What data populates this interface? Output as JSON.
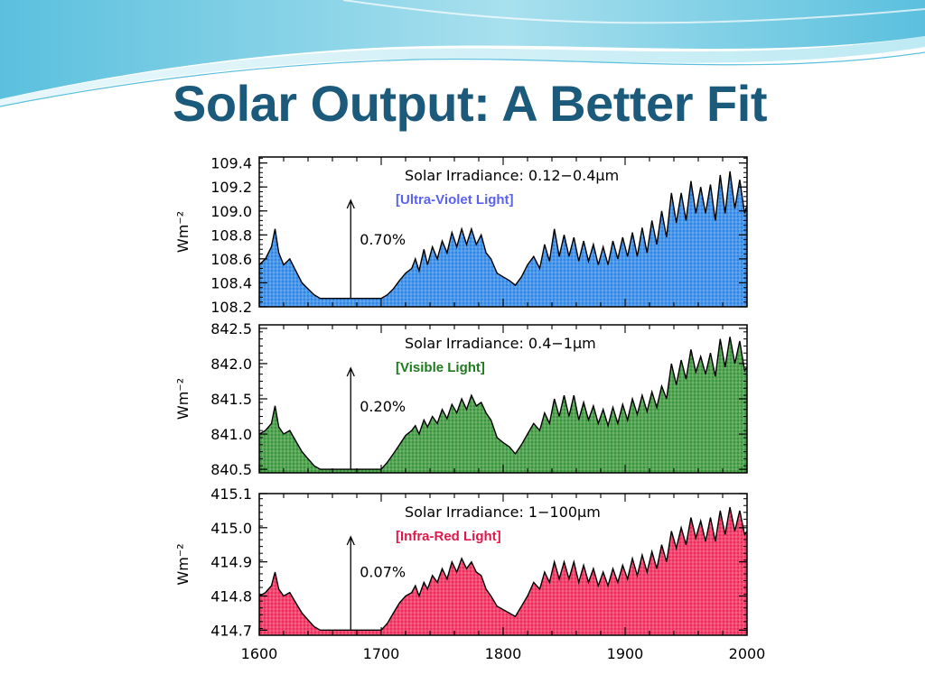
{
  "slide": {
    "title": "Solar Output: A Better Fit",
    "title_color": "#1B5A7A",
    "accent_color": "#5BC0DE"
  },
  "chart_data": [
    {
      "type": "area",
      "title": "Solar Irradiance: 0.12−0.4μm",
      "subtitle": "[Ultra-Violet Light]",
      "subtitle_color": "#5A62F0",
      "fill_color": "#2E86E6",
      "ylabel": "Wm⁻²",
      "ylim": [
        108.2,
        109.45
      ],
      "yticks": [
        "109.4",
        "109.2",
        "109.0",
        "108.8",
        "108.6",
        "108.4",
        "108.2"
      ],
      "ytick_values": [
        109.4,
        109.2,
        109.0,
        108.8,
        108.6,
        108.4,
        108.2
      ],
      "xlim": [
        1600,
        2000
      ],
      "annotation": "0.70%",
      "annotation_x": 1675,
      "grid": true,
      "x": [
        1600,
        1605,
        1610,
        1613,
        1616,
        1620,
        1625,
        1630,
        1635,
        1640,
        1645,
        1650,
        1660,
        1670,
        1680,
        1690,
        1700,
        1705,
        1710,
        1715,
        1720,
        1725,
        1728,
        1731,
        1735,
        1738,
        1742,
        1746,
        1750,
        1754,
        1758,
        1762,
        1766,
        1770,
        1774,
        1778,
        1782,
        1786,
        1790,
        1795,
        1800,
        1805,
        1810,
        1815,
        1820,
        1825,
        1830,
        1834,
        1838,
        1842,
        1846,
        1850,
        1854,
        1858,
        1862,
        1866,
        1870,
        1874,
        1878,
        1882,
        1886,
        1890,
        1894,
        1898,
        1902,
        1906,
        1910,
        1914,
        1918,
        1922,
        1926,
        1930,
        1934,
        1938,
        1942,
        1946,
        1950,
        1954,
        1958,
        1962,
        1966,
        1970,
        1974,
        1978,
        1982,
        1986,
        1990,
        1994,
        1998,
        2000
      ],
      "y": [
        108.55,
        108.6,
        108.7,
        108.85,
        108.65,
        108.55,
        108.6,
        108.5,
        108.4,
        108.35,
        108.3,
        108.27,
        108.27,
        108.27,
        108.27,
        108.27,
        108.27,
        108.3,
        108.35,
        108.42,
        108.48,
        108.52,
        108.6,
        108.5,
        108.68,
        108.55,
        108.7,
        108.6,
        108.75,
        108.65,
        108.82,
        108.7,
        108.85,
        108.72,
        108.85,
        108.72,
        108.8,
        108.65,
        108.6,
        108.48,
        108.45,
        108.42,
        108.38,
        108.45,
        108.55,
        108.62,
        108.52,
        108.72,
        108.58,
        108.85,
        108.62,
        108.8,
        108.62,
        108.78,
        108.58,
        108.75,
        108.58,
        108.72,
        108.55,
        108.7,
        108.55,
        108.75,
        108.6,
        108.78,
        108.62,
        108.82,
        108.62,
        108.86,
        108.65,
        108.92,
        108.72,
        109.0,
        108.78,
        109.15,
        108.9,
        109.15,
        108.92,
        109.25,
        108.98,
        109.2,
        108.98,
        109.22,
        108.92,
        109.3,
        108.98,
        109.33,
        109.02,
        109.26,
        108.98,
        109.05
      ]
    },
    {
      "type": "area",
      "title": "Solar Irradiance: 0.4−1μm",
      "subtitle": "[Visible Light]",
      "subtitle_color": "#1E7A1E",
      "fill_color": "#3A963A",
      "ylabel": "Wm⁻²",
      "ylim": [
        840.45,
        842.55
      ],
      "yticks": [
        "842.5",
        "842.0",
        "841.5",
        "841.0",
        "840.5"
      ],
      "ytick_values": [
        842.5,
        842.0,
        841.5,
        841.0,
        840.5
      ],
      "xlim": [
        1600,
        2000
      ],
      "annotation": "0.20%",
      "annotation_x": 1675,
      "grid": true,
      "x": [
        1600,
        1605,
        1610,
        1613,
        1616,
        1620,
        1625,
        1630,
        1635,
        1640,
        1645,
        1650,
        1660,
        1670,
        1680,
        1690,
        1700,
        1705,
        1710,
        1715,
        1720,
        1725,
        1728,
        1731,
        1735,
        1738,
        1742,
        1746,
        1750,
        1754,
        1758,
        1762,
        1766,
        1770,
        1774,
        1778,
        1782,
        1786,
        1790,
        1795,
        1800,
        1805,
        1810,
        1815,
        1820,
        1825,
        1830,
        1834,
        1838,
        1842,
        1846,
        1850,
        1854,
        1858,
        1862,
        1866,
        1870,
        1874,
        1878,
        1882,
        1886,
        1890,
        1894,
        1898,
        1902,
        1906,
        1910,
        1914,
        1918,
        1922,
        1926,
        1930,
        1934,
        1938,
        1942,
        1946,
        1950,
        1954,
        1958,
        1962,
        1966,
        1970,
        1974,
        1978,
        1982,
        1986,
        1990,
        1994,
        1998,
        2000
      ],
      "y": [
        841.0,
        841.05,
        841.15,
        841.4,
        841.1,
        841.0,
        841.05,
        840.9,
        840.75,
        840.65,
        840.55,
        840.5,
        840.5,
        840.5,
        840.5,
        840.5,
        840.5,
        840.6,
        840.72,
        840.85,
        840.98,
        841.05,
        841.12,
        841.0,
        841.2,
        841.1,
        841.25,
        841.15,
        841.35,
        841.22,
        841.42,
        841.3,
        841.5,
        841.35,
        841.55,
        841.4,
        841.45,
        841.3,
        841.2,
        840.95,
        840.88,
        840.82,
        840.72,
        840.85,
        841.0,
        841.15,
        841.05,
        841.3,
        841.15,
        841.5,
        841.25,
        841.55,
        841.25,
        841.55,
        841.2,
        841.45,
        841.2,
        841.4,
        841.15,
        841.35,
        841.12,
        841.38,
        841.15,
        841.42,
        841.2,
        841.5,
        841.28,
        841.55,
        841.32,
        841.6,
        841.38,
        841.68,
        841.5,
        842.0,
        841.7,
        842.05,
        841.78,
        842.2,
        841.88,
        842.1,
        841.85,
        842.15,
        841.82,
        842.35,
        841.95,
        842.38,
        842.0,
        842.32,
        841.9,
        841.95
      ]
    },
    {
      "type": "area",
      "title": "Solar Irradiance: 1−100μm",
      "subtitle": "[Infra-Red Light]",
      "subtitle_color": "#E0184A",
      "fill_color": "#F02A5A",
      "ylabel": "Wm⁻²",
      "xlabel": "",
      "ylim": [
        414.685,
        415.1
      ],
      "yticks": [
        "415.1",
        "415.0",
        "414.9",
        "414.8",
        "414.7"
      ],
      "ytick_values": [
        415.1,
        415.0,
        414.9,
        414.8,
        414.7
      ],
      "xlim": [
        1600,
        2000
      ],
      "xticks": [
        "1600",
        "1700",
        "1800",
        "1900",
        "2000"
      ],
      "xtick_values": [
        1600,
        1700,
        1800,
        1900,
        2000
      ],
      "annotation": "0.07%",
      "annotation_x": 1675,
      "grid": true,
      "x": [
        1600,
        1605,
        1610,
        1613,
        1616,
        1620,
        1625,
        1630,
        1635,
        1640,
        1645,
        1650,
        1660,
        1670,
        1680,
        1690,
        1700,
        1705,
        1710,
        1715,
        1720,
        1725,
        1728,
        1731,
        1735,
        1738,
        1742,
        1746,
        1750,
        1754,
        1758,
        1762,
        1766,
        1770,
        1774,
        1778,
        1782,
        1786,
        1790,
        1795,
        1800,
        1805,
        1810,
        1815,
        1820,
        1825,
        1830,
        1834,
        1838,
        1842,
        1846,
        1850,
        1854,
        1858,
        1862,
        1866,
        1870,
        1874,
        1878,
        1882,
        1886,
        1890,
        1894,
        1898,
        1902,
        1906,
        1910,
        1914,
        1918,
        1922,
        1926,
        1930,
        1934,
        1938,
        1942,
        1946,
        1950,
        1954,
        1958,
        1962,
        1966,
        1970,
        1974,
        1978,
        1982,
        1986,
        1990,
        1994,
        1998,
        2000
      ],
      "y": [
        414.8,
        414.81,
        414.83,
        414.87,
        414.82,
        414.8,
        414.81,
        414.78,
        414.75,
        414.73,
        414.71,
        414.7,
        414.7,
        414.7,
        414.7,
        414.7,
        414.7,
        414.72,
        414.75,
        414.78,
        414.8,
        414.81,
        414.83,
        414.8,
        414.84,
        414.82,
        414.86,
        414.84,
        414.88,
        414.85,
        414.9,
        414.87,
        414.91,
        414.88,
        414.9,
        414.87,
        414.86,
        414.82,
        414.8,
        414.77,
        414.76,
        414.75,
        414.74,
        414.77,
        414.8,
        414.84,
        414.82,
        414.87,
        414.84,
        414.9,
        414.85,
        414.9,
        414.85,
        414.9,
        414.84,
        414.89,
        414.84,
        414.88,
        414.83,
        414.87,
        414.83,
        414.88,
        414.84,
        414.89,
        414.85,
        414.91,
        414.86,
        414.92,
        414.87,
        414.93,
        414.88,
        414.95,
        414.9,
        414.99,
        414.94,
        415.0,
        414.95,
        415.03,
        414.97,
        415.02,
        414.96,
        415.03,
        414.96,
        415.05,
        414.98,
        415.06,
        414.99,
        415.05,
        414.98,
        414.99
      ]
    }
  ]
}
